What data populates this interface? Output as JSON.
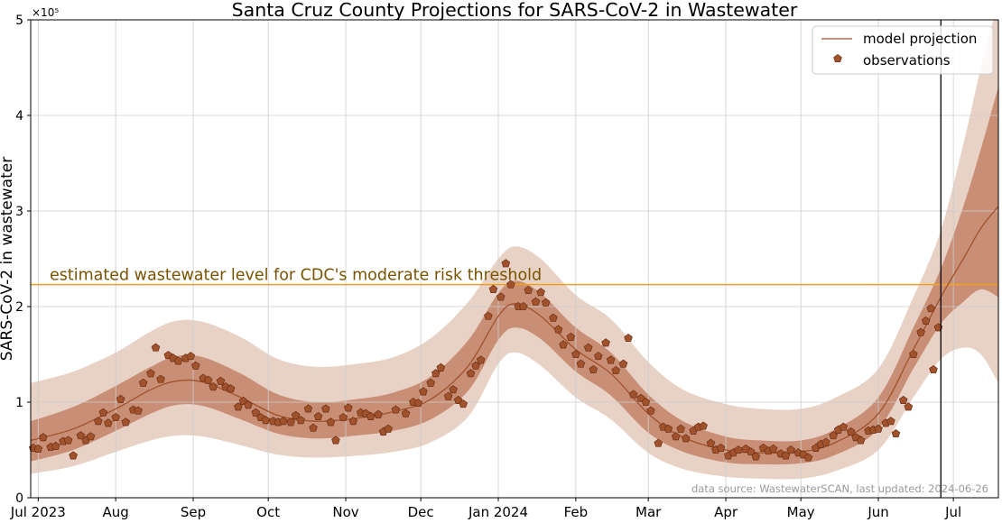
{
  "chart_data": {
    "type": "line",
    "title": "Santa Cruz County Projections for SARS-CoV-2 in Wastewater",
    "ylabel": "SARS-CoV-2 in wastewater",
    "xlabel": "",
    "y_scale_label": "×10⁵",
    "ylim": [
      0,
      5
    ],
    "y_ticks": [
      0,
      1,
      2,
      3,
      4,
      5
    ],
    "x_ticks": [
      {
        "x": "2023-07-01",
        "label": "Jul 2023"
      },
      {
        "x": "2023-08-01",
        "label": "Aug"
      },
      {
        "x": "2023-09-01",
        "label": "Sep"
      },
      {
        "x": "2023-10-01",
        "label": "Oct"
      },
      {
        "x": "2023-11-01",
        "label": "Nov"
      },
      {
        "x": "2023-12-01",
        "label": "Dec"
      },
      {
        "x": "2024-01-01",
        "label": "Jan 2024"
      },
      {
        "x": "2024-02-01",
        "label": "Feb"
      },
      {
        "x": "2024-03-01",
        "label": "Mar"
      },
      {
        "x": "2024-04-01",
        "label": "Apr"
      },
      {
        "x": "2024-05-01",
        "label": "May"
      },
      {
        "x": "2024-06-01",
        "label": "Jun"
      },
      {
        "x": "2024-07-01",
        "label": "Jul"
      }
    ],
    "xlim": [
      "2023-06-28",
      "2024-07-19"
    ],
    "grid": true,
    "legend": {
      "placement": "top-right",
      "entries": [
        "model projection",
        "observations"
      ]
    },
    "threshold": {
      "value": 2.23,
      "label": "estimated wastewater level for CDC's moderate risk threshold"
    },
    "today_line": "2024-06-26",
    "source_note": "data source: WastewaterSCAN, last updated: 2024-06-26",
    "colors": {
      "line": "#a0522d",
      "band_outer": "#e8d2c6",
      "band_inner": "#c98f76",
      "marker": "#a0522d",
      "marker_edge": "#6e2f14",
      "threshold": "#f0a020",
      "threshold_text": "#7a5300",
      "today_line": "#000000",
      "grid": "#cccccc"
    },
    "projection": [
      {
        "x": "2023-06-28",
        "y": 0.6,
        "lo50": 0.38,
        "hi50": 0.8,
        "lo90": 0.25,
        "hi90": 1.2
      },
      {
        "x": "2023-07-15",
        "y": 0.72,
        "lo50": 0.5,
        "hi50": 0.95,
        "lo90": 0.33,
        "hi90": 1.32
      },
      {
        "x": "2023-08-01",
        "y": 0.93,
        "lo50": 0.7,
        "hi50": 1.17,
        "lo90": 0.48,
        "hi90": 1.52
      },
      {
        "x": "2023-08-15",
        "y": 1.13,
        "lo50": 0.88,
        "hi50": 1.37,
        "lo90": 0.6,
        "hi90": 1.74
      },
      {
        "x": "2023-08-25",
        "y": 1.22,
        "lo50": 0.97,
        "hi50": 1.48,
        "lo90": 0.65,
        "hi90": 1.85
      },
      {
        "x": "2023-09-05",
        "y": 1.21,
        "lo50": 0.96,
        "hi50": 1.47,
        "lo90": 0.64,
        "hi90": 1.84
      },
      {
        "x": "2023-09-20",
        "y": 1.05,
        "lo50": 0.82,
        "hi50": 1.3,
        "lo90": 0.55,
        "hi90": 1.68
      },
      {
        "x": "2023-10-05",
        "y": 0.86,
        "lo50": 0.67,
        "hi50": 1.08,
        "lo90": 0.45,
        "hi90": 1.45
      },
      {
        "x": "2023-10-20",
        "y": 0.8,
        "lo50": 0.62,
        "hi50": 1.0,
        "lo90": 0.42,
        "hi90": 1.37
      },
      {
        "x": "2023-11-05",
        "y": 0.83,
        "lo50": 0.65,
        "hi50": 1.03,
        "lo90": 0.44,
        "hi90": 1.4
      },
      {
        "x": "2023-11-20",
        "y": 0.9,
        "lo50": 0.7,
        "hi50": 1.1,
        "lo90": 0.48,
        "hi90": 1.47
      },
      {
        "x": "2023-12-05",
        "y": 1.03,
        "lo50": 0.82,
        "hi50": 1.27,
        "lo90": 0.58,
        "hi90": 1.67
      },
      {
        "x": "2023-12-20",
        "y": 1.38,
        "lo50": 1.12,
        "hi50": 1.65,
        "lo90": 0.85,
        "hi90": 2.05
      },
      {
        "x": "2024-01-01",
        "y": 1.9,
        "lo50": 1.65,
        "hi50": 2.14,
        "lo90": 1.4,
        "hi90": 2.5
      },
      {
        "x": "2024-01-08",
        "y": 2.03,
        "lo50": 1.78,
        "hi50": 2.27,
        "lo90": 1.52,
        "hi90": 2.63
      },
      {
        "x": "2024-01-18",
        "y": 1.9,
        "lo50": 1.66,
        "hi50": 2.14,
        "lo90": 1.38,
        "hi90": 2.5
      },
      {
        "x": "2024-02-01",
        "y": 1.55,
        "lo50": 1.32,
        "hi50": 1.78,
        "lo90": 1.05,
        "hi90": 2.12
      },
      {
        "x": "2024-02-15",
        "y": 1.3,
        "lo50": 1.07,
        "hi50": 1.52,
        "lo90": 0.82,
        "hi90": 1.87
      },
      {
        "x": "2024-03-01",
        "y": 0.88,
        "lo50": 0.68,
        "hi50": 1.08,
        "lo90": 0.47,
        "hi90": 1.42
      },
      {
        "x": "2024-03-15",
        "y": 0.63,
        "lo50": 0.48,
        "hi50": 0.8,
        "lo90": 0.3,
        "hi90": 1.13
      },
      {
        "x": "2024-04-01",
        "y": 0.5,
        "lo50": 0.37,
        "hi50": 0.64,
        "lo90": 0.22,
        "hi90": 0.98
      },
      {
        "x": "2024-04-15",
        "y": 0.47,
        "lo50": 0.35,
        "hi50": 0.6,
        "lo90": 0.2,
        "hi90": 0.93
      },
      {
        "x": "2024-05-01",
        "y": 0.48,
        "lo50": 0.36,
        "hi50": 0.6,
        "lo90": 0.2,
        "hi90": 0.93
      },
      {
        "x": "2024-05-15",
        "y": 0.58,
        "lo50": 0.45,
        "hi50": 0.72,
        "lo90": 0.28,
        "hi90": 1.05
      },
      {
        "x": "2024-06-01",
        "y": 0.88,
        "lo50": 0.72,
        "hi50": 1.05,
        "lo90": 0.5,
        "hi90": 1.35
      },
      {
        "x": "2024-06-15",
        "y": 1.55,
        "lo50": 1.35,
        "hi50": 1.78,
        "lo90": 1.05,
        "hi90": 2.1
      },
      {
        "x": "2024-06-26",
        "y": 2.1,
        "lo50": 1.82,
        "hi50": 2.4,
        "lo90": 1.45,
        "hi90": 2.8
      },
      {
        "x": "2024-07-05",
        "y": 2.5,
        "lo50": 2.05,
        "hi50": 3.05,
        "lo90": 1.57,
        "hi90": 3.7
      },
      {
        "x": "2024-07-12",
        "y": 2.82,
        "lo50": 2.18,
        "hi50": 3.65,
        "lo90": 1.5,
        "hi90": 4.5
      },
      {
        "x": "2024-07-19",
        "y": 3.05,
        "lo50": 2.1,
        "hi50": 4.3,
        "lo90": 1.2,
        "hi90": 5.2
      }
    ],
    "observations": [
      {
        "x": "2023-06-29",
        "y": 0.52
      },
      {
        "x": "2023-07-01",
        "y": 0.51
      },
      {
        "x": "2023-07-03",
        "y": 0.63
      },
      {
        "x": "2023-07-06",
        "y": 0.53
      },
      {
        "x": "2023-07-08",
        "y": 0.54
      },
      {
        "x": "2023-07-11",
        "y": 0.59
      },
      {
        "x": "2023-07-13",
        "y": 0.6
      },
      {
        "x": "2023-07-15",
        "y": 0.44
      },
      {
        "x": "2023-07-18",
        "y": 0.65
      },
      {
        "x": "2023-07-20",
        "y": 0.6
      },
      {
        "x": "2023-07-22",
        "y": 0.64
      },
      {
        "x": "2023-07-25",
        "y": 0.8
      },
      {
        "x": "2023-07-27",
        "y": 0.89
      },
      {
        "x": "2023-07-29",
        "y": 0.78
      },
      {
        "x": "2023-08-01",
        "y": 0.84
      },
      {
        "x": "2023-08-03",
        "y": 1.03
      },
      {
        "x": "2023-08-05",
        "y": 0.79
      },
      {
        "x": "2023-08-08",
        "y": 0.92
      },
      {
        "x": "2023-08-10",
        "y": 0.91
      },
      {
        "x": "2023-08-12",
        "y": 1.2
      },
      {
        "x": "2023-08-15",
        "y": 1.3
      },
      {
        "x": "2023-08-17",
        "y": 1.57
      },
      {
        "x": "2023-08-19",
        "y": 1.24
      },
      {
        "x": "2023-08-22",
        "y": 1.49
      },
      {
        "x": "2023-08-24",
        "y": 1.46
      },
      {
        "x": "2023-08-26",
        "y": 1.43
      },
      {
        "x": "2023-08-29",
        "y": 1.46
      },
      {
        "x": "2023-08-31",
        "y": 1.48
      },
      {
        "x": "2023-09-02",
        "y": 1.38
      },
      {
        "x": "2023-09-05",
        "y": 1.25
      },
      {
        "x": "2023-09-07",
        "y": 1.23
      },
      {
        "x": "2023-09-09",
        "y": 1.16
      },
      {
        "x": "2023-09-12",
        "y": 1.22
      },
      {
        "x": "2023-09-14",
        "y": 1.16
      },
      {
        "x": "2023-09-16",
        "y": 1.14
      },
      {
        "x": "2023-09-19",
        "y": 0.95
      },
      {
        "x": "2023-09-21",
        "y": 1.01
      },
      {
        "x": "2023-09-23",
        "y": 0.97
      },
      {
        "x": "2023-09-26",
        "y": 0.89
      },
      {
        "x": "2023-09-28",
        "y": 0.84
      },
      {
        "x": "2023-09-30",
        "y": 0.81
      },
      {
        "x": "2023-10-03",
        "y": 0.8
      },
      {
        "x": "2023-10-05",
        "y": 0.79
      },
      {
        "x": "2023-10-07",
        "y": 0.8
      },
      {
        "x": "2023-10-10",
        "y": 0.79
      },
      {
        "x": "2023-10-12",
        "y": 0.86
      },
      {
        "x": "2023-10-14",
        "y": 0.81
      },
      {
        "x": "2023-10-17",
        "y": 0.93
      },
      {
        "x": "2023-10-19",
        "y": 0.73
      },
      {
        "x": "2023-10-21",
        "y": 0.85
      },
      {
        "x": "2023-10-24",
        "y": 0.93
      },
      {
        "x": "2023-10-26",
        "y": 0.79
      },
      {
        "x": "2023-10-28",
        "y": 0.6
      },
      {
        "x": "2023-10-31",
        "y": 0.84
      },
      {
        "x": "2023-11-02",
        "y": 0.94
      },
      {
        "x": "2023-11-04",
        "y": 0.8
      },
      {
        "x": "2023-11-07",
        "y": 0.89
      },
      {
        "x": "2023-11-09",
        "y": 0.88
      },
      {
        "x": "2023-11-11",
        "y": 0.85
      },
      {
        "x": "2023-11-14",
        "y": 0.87
      },
      {
        "x": "2023-11-16",
        "y": 0.69
      },
      {
        "x": "2023-11-18",
        "y": 0.72
      },
      {
        "x": "2023-11-21",
        "y": 0.92
      },
      {
        "x": "2023-11-25",
        "y": 0.88
      },
      {
        "x": "2023-11-28",
        "y": 1.0
      },
      {
        "x": "2023-11-30",
        "y": 0.99
      },
      {
        "x": "2023-12-02",
        "y": 1.11
      },
      {
        "x": "2023-12-05",
        "y": 1.2
      },
      {
        "x": "2023-12-07",
        "y": 1.3
      },
      {
        "x": "2023-12-09",
        "y": 1.36
      },
      {
        "x": "2023-12-12",
        "y": 1.06
      },
      {
        "x": "2023-12-14",
        "y": 1.13
      },
      {
        "x": "2023-12-16",
        "y": 1.02
      },
      {
        "x": "2023-12-18",
        "y": 0.98
      },
      {
        "x": "2023-12-21",
        "y": 1.3
      },
      {
        "x": "2023-12-23",
        "y": 1.38
      },
      {
        "x": "2023-12-25",
        "y": 1.44
      },
      {
        "x": "2023-12-28",
        "y": 1.9
      },
      {
        "x": "2023-12-30",
        "y": 2.18
      },
      {
        "x": "2024-01-02",
        "y": 2.1
      },
      {
        "x": "2024-01-04",
        "y": 2.45
      },
      {
        "x": "2024-01-06",
        "y": 2.23
      },
      {
        "x": "2024-01-09",
        "y": 2.0
      },
      {
        "x": "2024-01-11",
        "y": 2.0
      },
      {
        "x": "2024-01-13",
        "y": 2.17
      },
      {
        "x": "2024-01-16",
        "y": 2.05
      },
      {
        "x": "2024-01-18",
        "y": 2.15
      },
      {
        "x": "2024-01-20",
        "y": 2.04
      },
      {
        "x": "2024-01-23",
        "y": 1.88
      },
      {
        "x": "2024-01-25",
        "y": 1.76
      },
      {
        "x": "2024-01-27",
        "y": 1.6
      },
      {
        "x": "2024-01-30",
        "y": 1.68
      },
      {
        "x": "2024-02-01",
        "y": 1.5
      },
      {
        "x": "2024-02-03",
        "y": 1.4
      },
      {
        "x": "2024-02-06",
        "y": 1.57
      },
      {
        "x": "2024-02-08",
        "y": 1.34
      },
      {
        "x": "2024-02-10",
        "y": 1.48
      },
      {
        "x": "2024-02-13",
        "y": 1.62
      },
      {
        "x": "2024-02-15",
        "y": 1.44
      },
      {
        "x": "2024-02-17",
        "y": 1.33
      },
      {
        "x": "2024-02-20",
        "y": 1.4
      },
      {
        "x": "2024-02-22",
        "y": 1.67
      },
      {
        "x": "2024-02-24",
        "y": 1.08
      },
      {
        "x": "2024-02-27",
        "y": 1.04
      },
      {
        "x": "2024-02-29",
        "y": 1.0
      },
      {
        "x": "2024-03-02",
        "y": 0.91
      },
      {
        "x": "2024-03-05",
        "y": 0.57
      },
      {
        "x": "2024-03-07",
        "y": 0.74
      },
      {
        "x": "2024-03-09",
        "y": 0.72
      },
      {
        "x": "2024-03-12",
        "y": 0.64
      },
      {
        "x": "2024-03-14",
        "y": 0.72
      },
      {
        "x": "2024-03-16",
        "y": 0.62
      },
      {
        "x": "2024-03-19",
        "y": 0.7
      },
      {
        "x": "2024-03-21",
        "y": 0.74
      },
      {
        "x": "2024-03-23",
        "y": 0.75
      },
      {
        "x": "2024-03-26",
        "y": 0.57
      },
      {
        "x": "2024-03-28",
        "y": 0.5
      },
      {
        "x": "2024-03-30",
        "y": 0.52
      },
      {
        "x": "2024-04-02",
        "y": 0.44
      },
      {
        "x": "2024-04-04",
        "y": 0.47
      },
      {
        "x": "2024-04-06",
        "y": 0.5
      },
      {
        "x": "2024-04-09",
        "y": 0.51
      },
      {
        "x": "2024-04-11",
        "y": 0.48
      },
      {
        "x": "2024-04-13",
        "y": 0.43
      },
      {
        "x": "2024-04-16",
        "y": 0.52
      },
      {
        "x": "2024-04-18",
        "y": 0.49
      },
      {
        "x": "2024-04-20",
        "y": 0.51
      },
      {
        "x": "2024-04-23",
        "y": 0.46
      },
      {
        "x": "2024-04-25",
        "y": 0.44
      },
      {
        "x": "2024-04-27",
        "y": 0.5
      },
      {
        "x": "2024-04-30",
        "y": 0.47
      },
      {
        "x": "2024-05-02",
        "y": 0.45
      },
      {
        "x": "2024-05-04",
        "y": 0.42
      },
      {
        "x": "2024-05-07",
        "y": 0.52
      },
      {
        "x": "2024-05-09",
        "y": 0.56
      },
      {
        "x": "2024-05-11",
        "y": 0.58
      },
      {
        "x": "2024-05-14",
        "y": 0.65
      },
      {
        "x": "2024-05-16",
        "y": 0.71
      },
      {
        "x": "2024-05-18",
        "y": 0.74
      },
      {
        "x": "2024-05-21",
        "y": 0.69
      },
      {
        "x": "2024-05-23",
        "y": 0.63
      },
      {
        "x": "2024-05-25",
        "y": 0.6
      },
      {
        "x": "2024-05-28",
        "y": 0.7
      },
      {
        "x": "2024-05-30",
        "y": 0.71
      },
      {
        "x": "2024-06-01",
        "y": 0.72
      },
      {
        "x": "2024-06-04",
        "y": 0.78
      },
      {
        "x": "2024-06-06",
        "y": 0.8
      },
      {
        "x": "2024-06-08",
        "y": 0.67
      },
      {
        "x": "2024-06-11",
        "y": 1.02
      },
      {
        "x": "2024-06-13",
        "y": 0.95
      },
      {
        "x": "2024-06-15",
        "y": 1.5
      },
      {
        "x": "2024-06-18",
        "y": 1.73
      },
      {
        "x": "2024-06-20",
        "y": 1.85
      },
      {
        "x": "2024-06-22",
        "y": 1.98
      },
      {
        "x": "2024-06-23",
        "y": 1.34
      },
      {
        "x": "2024-06-25",
        "y": 1.78
      }
    ]
  }
}
